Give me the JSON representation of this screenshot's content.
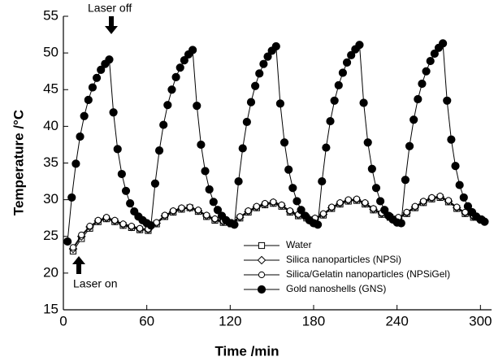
{
  "chart_data": {
    "type": "line",
    "xlabel": "Time /min",
    "ylabel": "Temperature /°C",
    "xlim": [
      0,
      308
    ],
    "ylim": [
      15,
      55
    ],
    "xticks": [
      0,
      60,
      120,
      180,
      240,
      300
    ],
    "yticks": [
      15,
      20,
      25,
      30,
      35,
      40,
      45,
      50,
      55
    ],
    "annotations": [
      "Laser off",
      "Laser on"
    ],
    "series": [
      {
        "name": "Water",
        "color": "#000000",
        "marker": "square",
        "x": [
          7,
          13,
          19,
          25,
          31,
          37,
          43,
          49,
          55,
          61,
          67,
          73,
          79,
          85,
          91,
          97,
          103,
          109,
          115,
          121,
          127,
          133,
          139,
          145,
          151,
          157,
          163,
          169,
          175,
          181,
          187,
          193,
          199,
          205,
          211,
          217,
          223,
          229,
          235,
          241,
          247,
          253,
          259,
          265,
          271,
          277,
          283,
          289,
          295,
          301
        ],
        "values": [
          23.0,
          24.7,
          26.1,
          27.0,
          27.4,
          27.0,
          26.5,
          26.2,
          25.9,
          25.8,
          26.7,
          27.7,
          28.3,
          28.7,
          28.9,
          28.4,
          27.7,
          27.2,
          26.9,
          26.7,
          27.5,
          28.3,
          28.9,
          29.3,
          29.5,
          29.1,
          28.3,
          27.8,
          27.5,
          27.3,
          27.9,
          28.8,
          29.4,
          29.8,
          29.9,
          29.4,
          28.6,
          28.0,
          27.6,
          27.4,
          28.1,
          28.9,
          29.6,
          30.1,
          30.3,
          29.7,
          28.8,
          28.1,
          27.6,
          27.2
        ]
      },
      {
        "name": "Silica nanoparticles (NPSi)",
        "color": "#000000",
        "marker": "diamond",
        "x": [
          7,
          13,
          19,
          25,
          31,
          37,
          43,
          49,
          55,
          61,
          67,
          73,
          79,
          85,
          91,
          97,
          103,
          109,
          115,
          121,
          127,
          133,
          139,
          145,
          151,
          157,
          163,
          169,
          175,
          181,
          187,
          193,
          199,
          205,
          211,
          217,
          223,
          229,
          235,
          241,
          247,
          253,
          259,
          265,
          271,
          277,
          283,
          289,
          295,
          301
        ],
        "values": [
          23.3,
          25.0,
          26.3,
          27.1,
          27.5,
          27.1,
          26.6,
          26.3,
          26.0,
          25.9,
          26.8,
          27.8,
          28.4,
          28.8,
          28.9,
          28.5,
          27.8,
          27.3,
          27.0,
          26.8,
          27.6,
          28.4,
          29.0,
          29.4,
          29.6,
          29.2,
          28.4,
          27.9,
          27.6,
          27.4,
          28.0,
          28.9,
          29.5,
          29.9,
          30.0,
          29.5,
          28.7,
          28.1,
          27.7,
          27.5,
          28.2,
          29.0,
          29.7,
          30.2,
          30.4,
          29.8,
          28.9,
          28.2,
          27.7,
          27.3
        ]
      },
      {
        "name": "Silica/Gelatin nanoparticles (NPSiGel)",
        "color": "#000000",
        "marker": "circle-open",
        "x": [
          7,
          13,
          19,
          25,
          31,
          37,
          43,
          49,
          55,
          61,
          67,
          73,
          79,
          85,
          91,
          97,
          103,
          109,
          115,
          121,
          127,
          133,
          139,
          145,
          151,
          157,
          163,
          169,
          175,
          181,
          187,
          193,
          199,
          205,
          211,
          217,
          223,
          229,
          235,
          241,
          247,
          253,
          259,
          265,
          271,
          277,
          283,
          289,
          295,
          301
        ],
        "values": [
          23.5,
          25.2,
          26.4,
          27.2,
          27.6,
          27.2,
          26.7,
          26.4,
          26.1,
          26.0,
          26.9,
          27.9,
          28.5,
          28.9,
          29.0,
          28.6,
          27.9,
          27.4,
          27.1,
          26.9,
          27.7,
          28.5,
          29.1,
          29.5,
          29.7,
          29.3,
          28.5,
          28.0,
          27.7,
          27.5,
          28.1,
          29.0,
          29.6,
          30.0,
          30.1,
          29.6,
          28.8,
          28.2,
          27.8,
          27.6,
          28.3,
          29.1,
          29.8,
          30.3,
          30.5,
          29.9,
          29.0,
          28.3,
          27.8,
          27.4
        ]
      },
      {
        "name": "Gold nanoshells (GNS)",
        "color": "#000000",
        "marker": "circle-filled",
        "x": [
          3,
          6,
          9,
          12,
          15,
          18,
          21,
          24,
          27,
          30,
          33,
          36,
          39,
          42,
          45,
          48,
          51,
          54,
          57,
          60,
          63,
          66,
          69,
          72,
          75,
          78,
          81,
          84,
          87,
          90,
          93,
          96,
          99,
          102,
          105,
          108,
          111,
          114,
          117,
          120,
          123,
          126,
          129,
          132,
          135,
          138,
          141,
          144,
          147,
          150,
          153,
          156,
          159,
          162,
          165,
          168,
          171,
          174,
          177,
          180,
          183,
          186,
          189,
          192,
          195,
          198,
          201,
          204,
          207,
          210,
          213,
          216,
          219,
          222,
          225,
          228,
          231,
          234,
          237,
          240,
          243,
          246,
          249,
          252,
          255,
          258,
          261,
          264,
          267,
          270,
          273,
          276,
          279,
          282,
          285,
          288,
          291,
          294,
          297,
          300,
          303
        ],
        "values": [
          24.3,
          30.3,
          34.9,
          38.6,
          41.4,
          43.6,
          45.3,
          46.6,
          47.7,
          48.5,
          49.1,
          41.9,
          36.9,
          33.5,
          31.2,
          29.5,
          28.4,
          27.7,
          27.2,
          26.8,
          26.5,
          32.2,
          36.7,
          40.2,
          42.9,
          45.0,
          46.7,
          48.0,
          49.0,
          49.8,
          50.4,
          42.8,
          37.5,
          33.9,
          31.4,
          29.7,
          28.6,
          27.8,
          27.2,
          26.8,
          26.6,
          32.5,
          37.0,
          40.6,
          43.3,
          45.5,
          47.2,
          48.5,
          49.5,
          50.3,
          50.9,
          43.1,
          37.8,
          34.1,
          31.6,
          29.8,
          28.6,
          27.8,
          27.2,
          26.8,
          26.6,
          32.5,
          37.1,
          40.7,
          43.5,
          45.6,
          47.3,
          48.7,
          49.7,
          50.5,
          51.1,
          43.2,
          37.8,
          34.2,
          31.6,
          29.8,
          28.6,
          27.8,
          27.3,
          26.9,
          26.8,
          32.7,
          37.3,
          40.9,
          43.7,
          45.8,
          47.5,
          48.9,
          49.9,
          50.7,
          51.3,
          43.5,
          38.2,
          34.6,
          32.0,
          30.3,
          29.1,
          28.3,
          27.7,
          27.3,
          27.0
        ]
      }
    ]
  }
}
